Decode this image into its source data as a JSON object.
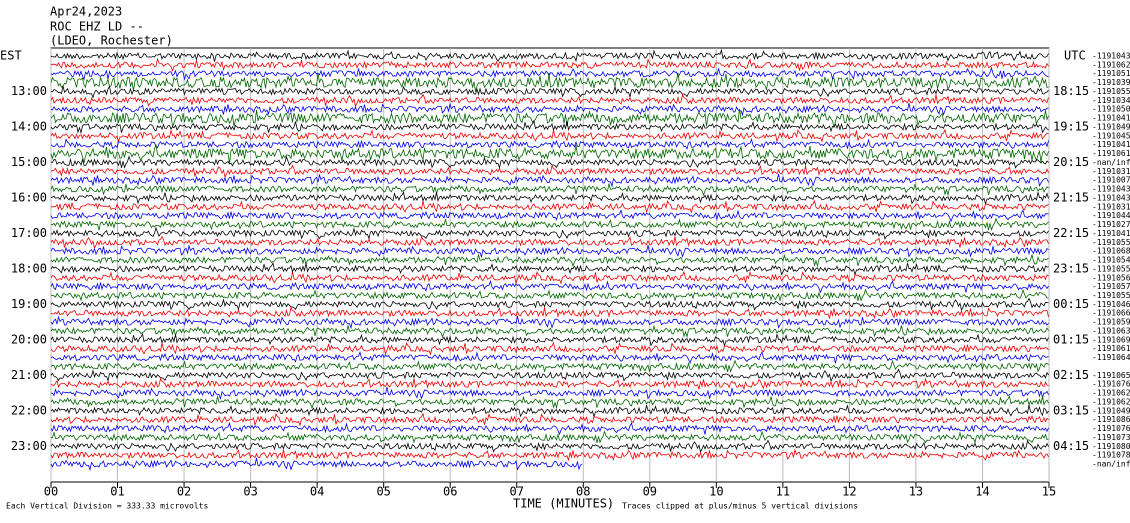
{
  "header": {
    "date": "Apr24,2023",
    "station": "ROC EHZ LD --",
    "network": "(LDEO, Rochester)"
  },
  "left_axis": {
    "title": "EST",
    "labels": [
      "13:00",
      "14:00",
      "15:00",
      "16:00",
      "17:00",
      "18:00",
      "19:00",
      "20:00",
      "21:00",
      "22:00",
      "23:00"
    ]
  },
  "right_axis": {
    "title": "UTC",
    "labels": [
      "18:15",
      "19:15",
      "20:15",
      "21:15",
      "22:15",
      "23:15",
      "00:15",
      "01:15",
      "02:15",
      "03:15",
      "04:15"
    ]
  },
  "trace_labels": [
    "-1191043",
    "-1191062",
    "-1191051",
    "-1191039",
    "-1191055",
    "-1191034",
    "-1191050",
    "-1191041",
    "-1191049",
    "-1191045",
    "-1191041",
    "-1191061",
    "-nan/inf",
    "-1191031",
    "-1191007",
    "-1191043",
    "-1191043",
    "-1191031",
    "-1191044",
    "-1191027",
    "-1191041",
    "-1191055",
    "-1191068",
    "-1191054",
    "-1191055",
    "-1191056",
    "-1191057",
    "-1191055",
    "-1191046",
    "-1191066",
    "-1191059",
    "-1191063",
    "-1191069",
    "-1191061",
    "-1191064",
    null,
    "-1191065",
    "-1191076",
    "-1191062",
    "-1191062",
    "-1191049",
    "-1191086",
    "-1191076",
    "-1191073",
    "-1191080",
    "-1191078",
    "-nan/inf"
  ],
  "x_axis": {
    "title": "TIME (MINUTES)",
    "ticks": [
      "00",
      "01",
      "02",
      "03",
      "04",
      "05",
      "06",
      "07",
      "08",
      "09",
      "10",
      "11",
      "12",
      "13",
      "14",
      "15"
    ]
  },
  "footer": {
    "scale": "Each Vertical Division =  333.33 microvolts",
    "clip": "Traces clipped at plus/minus 5 vertical divisions"
  }
}
